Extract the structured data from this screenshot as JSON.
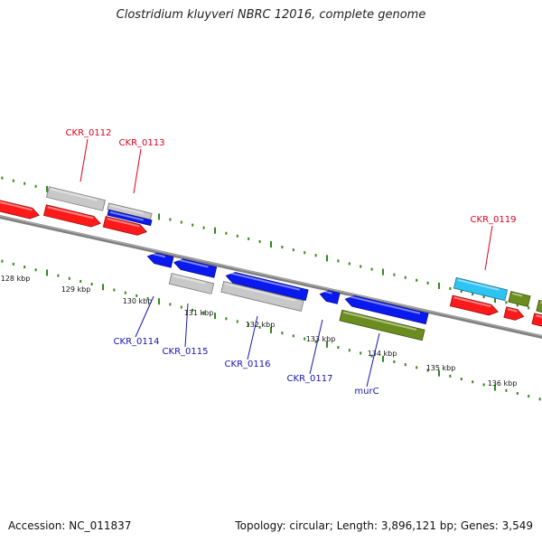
{
  "title": "Clostridium kluyveri NBRC 12016, complete genome",
  "footer": {
    "accession": "Accession: NC_011837",
    "summary": "Topology: circular; Length: 3,896,121 bp; Genes: 3,549"
  },
  "colors": {
    "red": "#ff1a1a",
    "gray": "#c8c8c8",
    "blue": "#0a1aee",
    "green": "#6b8c1e",
    "cyan": "#2ec3f2",
    "tick": "#2f8a1a",
    "backbone": "#808080",
    "label_red": "#e0001a",
    "label_blue": "#1515b0"
  },
  "scale_labels": [
    "128 kbp",
    "129 kbp",
    "130 kbp",
    "131 kbp",
    "132 kbp",
    "133 kbp",
    "134 kbp",
    "135 kbp",
    "136 kbp"
  ],
  "gene_labels": [
    {
      "name": "CKR_0112",
      "strand": "forward",
      "color": "red"
    },
    {
      "name": "CKR_0113",
      "strand": "forward",
      "color": "red"
    },
    {
      "name": "CKR_0119",
      "strand": "forward",
      "color": "red"
    },
    {
      "name": "CKR_0114",
      "strand": "reverse",
      "color": "blue"
    },
    {
      "name": "CKR_0115",
      "strand": "reverse",
      "color": "blue"
    },
    {
      "name": "CKR_0116",
      "strand": "reverse",
      "color": "blue"
    },
    {
      "name": "CKR_0117",
      "strand": "reverse",
      "color": "blue"
    },
    {
      "name": "murC",
      "strand": "reverse",
      "color": "blue"
    }
  ]
}
